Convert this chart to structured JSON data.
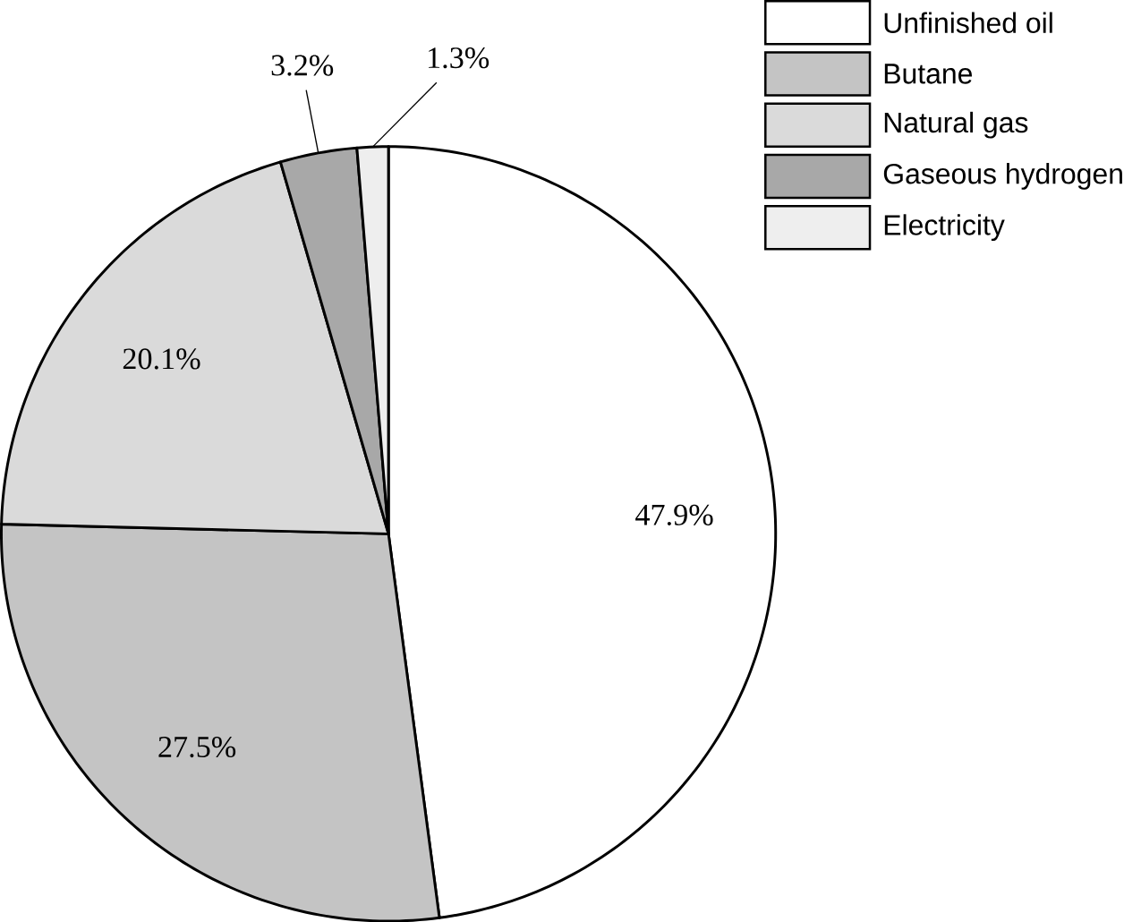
{
  "chart_data": {
    "type": "pie",
    "categories": [
      "Unfinished oil",
      "Butane",
      "Natural gas",
      "Gaseous hydrogen",
      "Electricity"
    ],
    "values": [
      47.9,
      27.5,
      20.1,
      3.2,
      1.3
    ],
    "colors": [
      "#ffffff",
      "#c4c4c4",
      "#dadada",
      "#a8a8a8",
      "#eeeeee"
    ],
    "value_labels": [
      "47.9%",
      "27.5%",
      "20.1%",
      "3.2%",
      "1.3%"
    ],
    "legend": "top right"
  }
}
